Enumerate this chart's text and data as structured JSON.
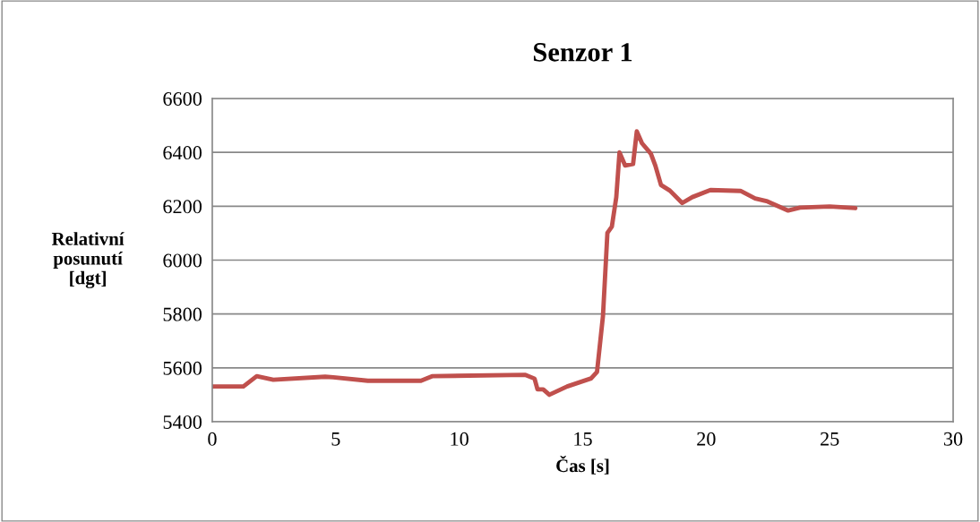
{
  "chart_data": {
    "type": "line",
    "title": "Senzor 1",
    "xlabel": "Čas [s]",
    "ylabel": "Relativní\nposunutí\n[dgt]",
    "xlim": [
      0,
      30
    ],
    "xticks": [
      0,
      5,
      10,
      15,
      20,
      25,
      30
    ],
    "ylim": [
      5400,
      6600
    ],
    "yticks": [
      5400,
      5600,
      5800,
      6000,
      6200,
      6400,
      6600
    ],
    "grid": "y",
    "legend": false,
    "marker": "none",
    "line_style": "solid",
    "series": [
      {
        "color": "#c0504d",
        "x": [
          0,
          1.26,
          1.8,
          2.47,
          4.57,
          4.9,
          6.3,
          8.45,
          8.9,
          12.68,
          13.05,
          13.17,
          13.4,
          13.65,
          14.37,
          15.34,
          15.58,
          15.82,
          16.0,
          16.18,
          16.36,
          16.49,
          16.72,
          17.04,
          17.19,
          17.4,
          17.76,
          17.94,
          18.17,
          18.53,
          19.03,
          19.44,
          20.17,
          21.39,
          21.98,
          22.48,
          23.32,
          23.8,
          25.0,
          26.04
        ],
        "values": [
          5531,
          5531,
          5569,
          5556,
          5567,
          5565,
          5552,
          5552,
          5569,
          5574,
          5560,
          5520,
          5520,
          5500,
          5531,
          5561,
          5585,
          5792,
          6101,
          6124,
          6234,
          6400,
          6351,
          6357,
          6478,
          6434,
          6395,
          6351,
          6279,
          6258,
          6212,
          6234,
          6260,
          6257,
          6229,
          6218,
          6184,
          6195,
          6199,
          6193
        ]
      }
    ]
  }
}
